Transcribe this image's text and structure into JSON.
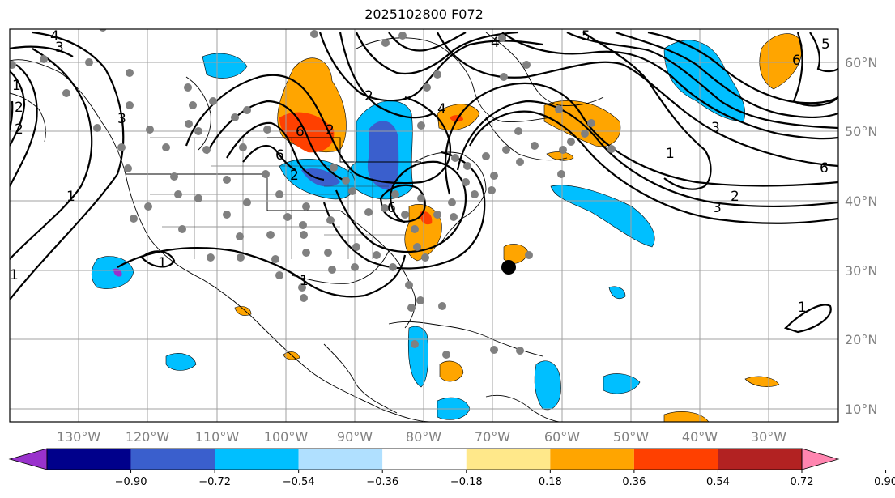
{
  "title": "2025102800 F072",
  "lat_labels": [
    "60°N",
    "50°N",
    "40°N",
    "30°N",
    "20°N",
    "10°N"
  ],
  "lon_labels": [
    "130°W",
    "120°W",
    "110°W",
    "100°W",
    "90°W",
    "80°W",
    "70°W",
    "60°W",
    "50°W",
    "40°W",
    "30°W"
  ],
  "colorbar": {
    "colors": [
      "#9932cc",
      "#00008b",
      "#3a5fcd",
      "#00bfff",
      "#b0e0ff",
      "#ffffff",
      "#ffe88a",
      "#ffa500",
      "#ff4000",
      "#b22222",
      "#ff85b0"
    ],
    "tick_labels": [
      "−0.90",
      "−0.72",
      "−0.54",
      "−0.36",
      "−0.18",
      "0.18",
      "0.36",
      "0.54",
      "0.72",
      "0.90"
    ]
  },
  "contour_labels": [
    "4",
    "3",
    "5",
    "6",
    "2",
    "1",
    "3",
    "2",
    "6",
    "1",
    "1",
    "4",
    "2",
    "5",
    "6",
    "1",
    "3",
    "2",
    "4",
    "6",
    "1",
    "1",
    "1",
    "2",
    "6",
    "3",
    "2"
  ]
}
